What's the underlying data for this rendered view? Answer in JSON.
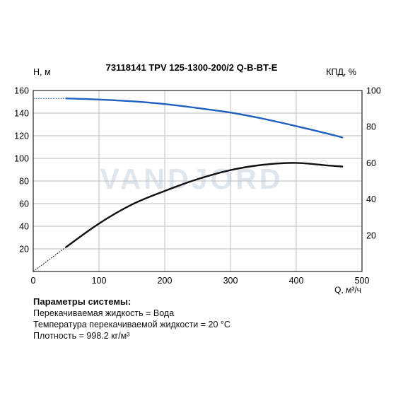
{
  "chart_data": {
    "type": "line",
    "title": "73118141 TPV 125-1300-200/2 Q-B-BT-E",
    "xlabel": "Q, м³/ч",
    "ylabel_left": "H, м",
    "ylabel_right": "КПД, %",
    "xlim": [
      0,
      500
    ],
    "ylim_left": [
      0,
      160
    ],
    "ylim_right": [
      0,
      100
    ],
    "x_ticks": [
      "0",
      "100",
      "200",
      "300",
      "400",
      "500"
    ],
    "y_ticks_left": [
      "20",
      "40",
      "60",
      "80",
      "100",
      "120",
      "140",
      "160"
    ],
    "y_ticks_right": [
      "20",
      "40",
      "60",
      "80",
      "100"
    ],
    "grid": true,
    "watermark": "VANDJORD",
    "series": [
      {
        "axis": "left",
        "color": "#1f5fbf",
        "dashed_segment": [
          [
            0,
            153
          ],
          [
            50,
            153
          ]
        ],
        "x": [
          50,
          100,
          150,
          200,
          250,
          300,
          350,
          400,
          450,
          470
        ],
        "y": [
          153,
          152,
          150.5,
          148,
          144.5,
          140.5,
          135,
          128.5,
          121.5,
          118.5
        ]
      },
      {
        "axis": "right",
        "color": "#111111",
        "dashed_segment": [
          [
            0,
            0
          ],
          [
            50,
            13.5
          ]
        ],
        "x": [
          50,
          100,
          150,
          200,
          250,
          300,
          350,
          400,
          450,
          470
        ],
        "y": [
          13.5,
          26.5,
          37,
          44.5,
          51,
          56,
          59,
          60,
          58.5,
          58
        ]
      }
    ]
  },
  "params": {
    "title": "Параметры системы:",
    "lines": [
      "Перекачиваемая жидкость = Вода",
      "Температура перекачиваемой жидкости = 20 °C",
      "Плотность = 998.2 кг/м³"
    ]
  }
}
